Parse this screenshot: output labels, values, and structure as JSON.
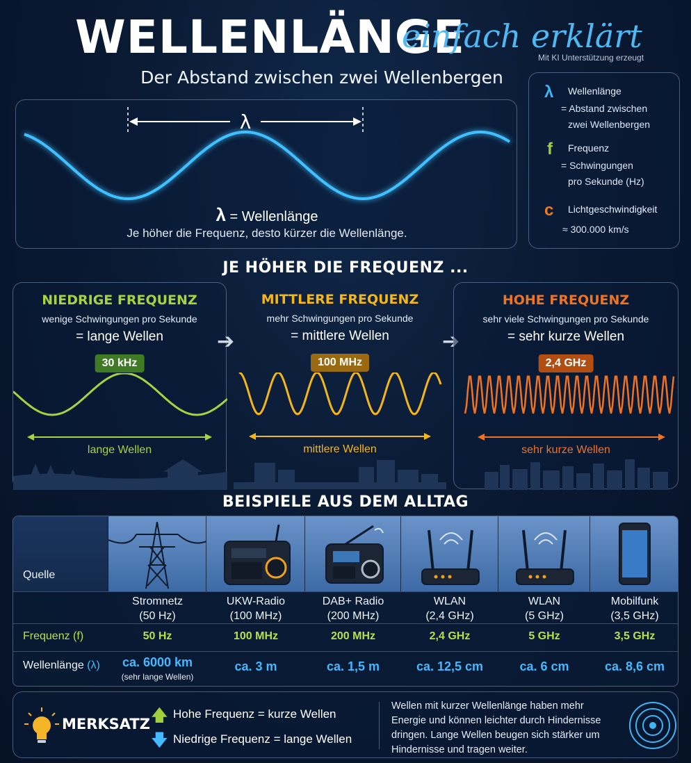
{
  "header": {
    "title": "WELLENLÄNGE",
    "title_script": "einfach erklärt",
    "ki_note": "Mit KI Unterstützung erzeugt",
    "subtitle": "Der Abstand zwischen zwei Wellenbergen"
  },
  "wave_panel": {
    "lambda_symbol": "λ",
    "caption_symbol": "λ",
    "caption_eq": "= Wellenlänge",
    "caption_text": "Je höher die Frequenz, desto kürzer die Wellenlänge."
  },
  "legend": {
    "items": [
      {
        "symbol": "λ",
        "term": "Wellenlänge",
        "desc1": "= Abstand zwischen",
        "desc2": "zwei Wellenbergen",
        "color": "#3fb4f0"
      },
      {
        "symbol": "f",
        "term": "Frequenz",
        "desc1": "= Schwingungen",
        "desc2": "pro Sekunde (Hz)",
        "color": "#9fd13c"
      },
      {
        "symbol": "c",
        "term": "Lichtgeschwindigkeit",
        "desc1": "≈ 300.000 km/s",
        "desc2": "",
        "color": "#f07a22"
      }
    ]
  },
  "frequency_section": {
    "heading": "JE HÖHER DIE FREQUENZ ...",
    "cards": [
      {
        "title": "NIEDRIGE FREQUENZ",
        "sub": "wenige Schwingungen pro Sekunde",
        "eq": "= lange Wellen",
        "badge": "30 kHz",
        "label": "lange Wellen",
        "color": "#a5d43f",
        "badge_color": "#3f7a25"
      },
      {
        "title": "MITTLERE FREQUENZ",
        "sub": "mehr Schwingungen pro Sekunde",
        "eq": "= mittlere Wellen",
        "badge": "100 MHz",
        "label": "mittlere Wellen",
        "color": "#f4b619",
        "badge_color": "#9a6a10"
      },
      {
        "title": "HOHE FREQUENZ",
        "sub": "sehr viele Schwingungen pro Sekunde",
        "eq": "= sehr kurze Wellen",
        "badge": "2,4 GHz",
        "label": "sehr kurze Wellen",
        "color": "#f07322",
        "badge_color": "#b24e12"
      }
    ]
  },
  "examples": {
    "heading": "BEISPIELE AUS DEM ALLTAG",
    "row_labels": {
      "source": "Quelle",
      "frequency_prefix": "Frequenz (f)",
      "wavelength_prefix": "Wellenlänge",
      "wavelength_symbol": "(λ)"
    },
    "columns": [
      {
        "name": "Stromnetz",
        "name2": "(50 Hz)",
        "freq": "50 Hz",
        "wave": "ca. 6000 km",
        "wave_note": "(sehr lange Wellen)",
        "icon": "power-pylon-icon"
      },
      {
        "name": "UKW-Radio",
        "name2": "(100 MHz)",
        "freq": "100 MHz",
        "wave": "ca. 3 m",
        "wave_note": "",
        "icon": "radio-icon"
      },
      {
        "name": "DAB+ Radio",
        "name2": "(200 MHz)",
        "freq": "200 MHz",
        "wave": "ca. 1,5 m",
        "wave_note": "",
        "icon": "digital-radio-icon"
      },
      {
        "name": "WLAN",
        "name2": "(2,4 GHz)",
        "freq": "2,4 GHz",
        "wave": "ca. 12,5 cm",
        "wave_note": "",
        "icon": "router-icon"
      },
      {
        "name": "WLAN",
        "name2": "(5 GHz)",
        "freq": "5 GHz",
        "wave": "ca. 6 cm",
        "wave_note": "",
        "icon": "router-icon"
      },
      {
        "name": "Mobilfunk",
        "name2": "(3,5 GHz)",
        "freq": "3,5 GHz",
        "wave": "ca. 8,6 cm",
        "wave_note": "",
        "icon": "smartphone-icon"
      }
    ]
  },
  "merksatz": {
    "title": "MERKSATZ",
    "line1": "Hohe Frequenz  =  kurze Wellen",
    "line2": "Niedrige Frequenz  =  lange Wellen",
    "text": "Wellen mit kurzer Wellenlänge haben mehr Energie und können leichter durch Hindernisse dringen. Lange Wellen beugen sich stärker um Hindernisse und tragen weiter."
  }
}
